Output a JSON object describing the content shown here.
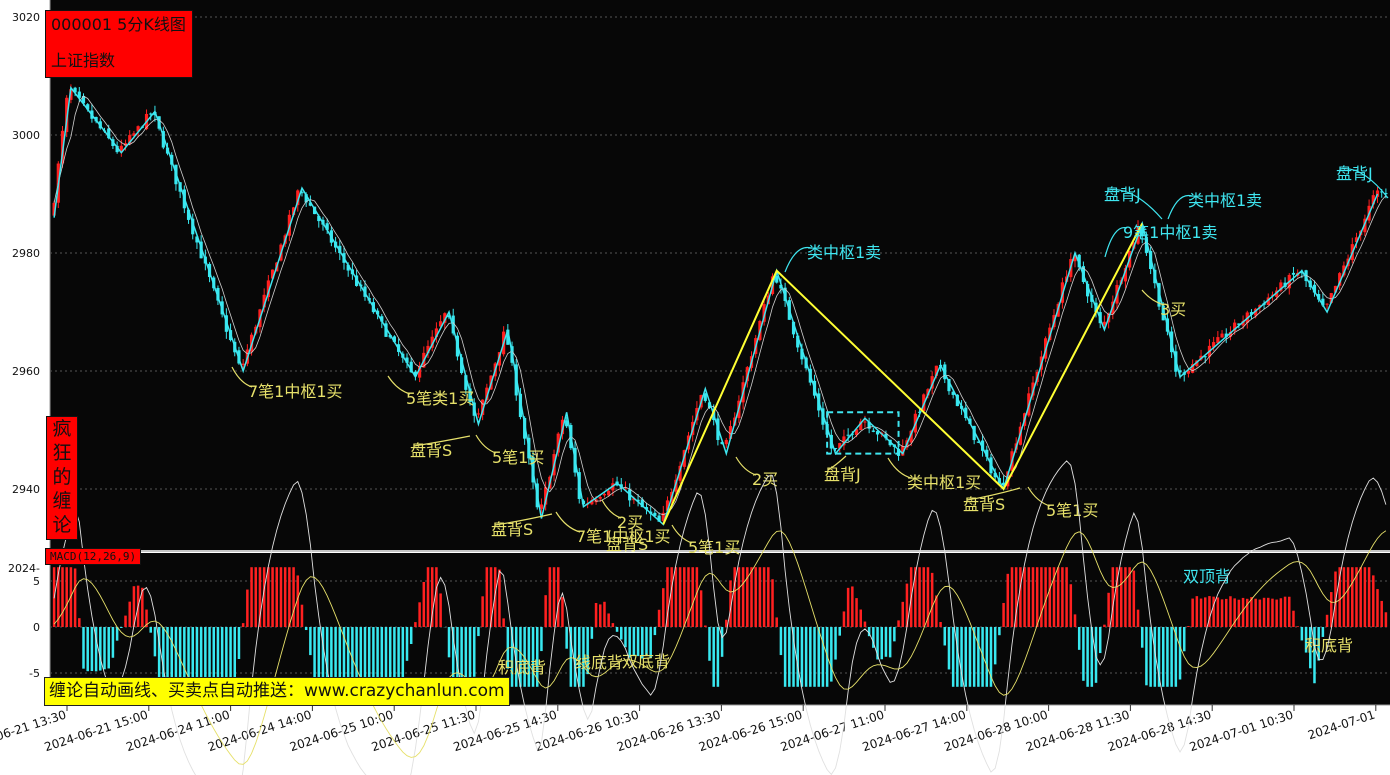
{
  "header": {
    "code_title": "000001 5分K线图",
    "index_name": "上证指数"
  },
  "side_banner": [
    "疯",
    "狂",
    "的",
    "缠",
    "论"
  ],
  "macd_label": "MACD(12,26,9)",
  "promo": "缠论自动画线、买卖点自动推送：www.crazychanlun.com",
  "colors": {
    "background": "#070707",
    "up": "#ff2020",
    "down": "#38e8f0",
    "bi_line": "#3fe6f0",
    "segment_line": "#ffff33",
    "label_yellow": "#e6e06a",
    "label_cyan": "#3fe6f0",
    "grid": "#555555",
    "title_red": "#ff0000",
    "promo_yellow": "#ffff00"
  },
  "chart_data": [
    {
      "type": "candlestick",
      "title": "000001 5分K线图",
      "subtitle": "上证指数",
      "y_ticks": [
        3020,
        3000,
        2980,
        2960,
        2940
      ],
      "x_ticks": [
        "2024-06-21 13:30",
        "2024-06-21 15:00",
        "2024-06-24 11:00",
        "2024-06-24 14:00",
        "2024-06-25 10:00",
        "2024-06-25 11:30",
        "2024-06-25 14:30",
        "2024-06-26 10:30",
        "2024-06-26 13:30",
        "2024-06-26 15:00",
        "2024-06-27 11:00",
        "2024-06-27 14:00",
        "2024-06-28 10:00",
        "2024-06-28 11:30",
        "2024-06-28 14:30",
        "2024-07-01 10:30",
        "2024-07-01"
      ],
      "ylim": [
        2930,
        3022
      ],
      "grid": true,
      "bi_pivots": [
        {
          "i": 0,
          "y": 2986
        },
        {
          "i": 4,
          "y": 3008
        },
        {
          "i": 16,
          "y": 2997
        },
        {
          "i": 24,
          "y": 3004
        },
        {
          "i": 45,
          "y": 2960
        },
        {
          "i": 59,
          "y": 2991
        },
        {
          "i": 86,
          "y": 2959
        },
        {
          "i": 94,
          "y": 2970
        },
        {
          "i": 101,
          "y": 2951
        },
        {
          "i": 108,
          "y": 2967
        },
        {
          "i": 116,
          "y": 2935
        },
        {
          "i": 122,
          "y": 2953
        },
        {
          "i": 126,
          "y": 2937
        },
        {
          "i": 134,
          "y": 2941
        },
        {
          "i": 145,
          "y": 2934
        },
        {
          "i": 155,
          "y": 2957
        },
        {
          "i": 160,
          "y": 2946
        },
        {
          "i": 172,
          "y": 2977
        },
        {
          "i": 186,
          "y": 2946
        },
        {
          "i": 193,
          "y": 2952
        },
        {
          "i": 202,
          "y": 2946
        },
        {
          "i": 211,
          "y": 2961
        },
        {
          "i": 226,
          "y": 2940
        },
        {
          "i": 243,
          "y": 2980
        },
        {
          "i": 250,
          "y": 2967
        },
        {
          "i": 259,
          "y": 2985
        },
        {
          "i": 268,
          "y": 2959
        },
        {
          "i": 297,
          "y": 2977
        },
        {
          "i": 303,
          "y": 2970
        },
        {
          "i": 315,
          "y": 2990
        }
      ],
      "segments": [
        {
          "i": 145,
          "y": 2934
        },
        {
          "i": 172,
          "y": 2977
        },
        {
          "i": 226,
          "y": 2940
        },
        {
          "i": 259,
          "y": 2985
        }
      ],
      "pivot_box": {
        "i0": 184,
        "i1": 201,
        "y0": 2946,
        "y1": 2953
      },
      "annotations": [
        {
          "text": "7笔1中枢1买",
          "color": "yellow"
        },
        {
          "text": "5笔类1买",
          "color": "yellow"
        },
        {
          "text": "盘背S",
          "color": "yellow"
        },
        {
          "text": "5笔1买",
          "color": "yellow"
        },
        {
          "text": "盘背S",
          "color": "yellow"
        },
        {
          "text": "7笔1中枢1买",
          "color": "yellow"
        },
        {
          "text": "2买",
          "color": "yellow"
        },
        {
          "text": "盘背S",
          "color": "yellow"
        },
        {
          "text": "5笔1买",
          "color": "yellow"
        },
        {
          "text": "2买",
          "color": "yellow"
        },
        {
          "text": "类中枢1卖",
          "color": "cyan"
        },
        {
          "text": "盘背J",
          "color": "yellow"
        },
        {
          "text": "类中枢1买",
          "color": "yellow"
        },
        {
          "text": "盘背S",
          "color": "yellow"
        },
        {
          "text": "5笔1买",
          "color": "yellow"
        },
        {
          "text": "盘背J",
          "color": "cyan"
        },
        {
          "text": "9笔1中枢1卖",
          "color": "cyan"
        },
        {
          "text": "类中枢1卖",
          "color": "cyan"
        },
        {
          "text": "3买",
          "color": "yellow"
        },
        {
          "text": "盘背J",
          "color": "cyan"
        }
      ]
    },
    {
      "type": "bar",
      "title": "MACD(12,26,9)",
      "y_ticks": [
        5,
        0,
        -5
      ],
      "ylim": [
        -7,
        7
      ],
      "annotations": [
        {
          "text": "积底背",
          "color": "yellow"
        },
        {
          "text": "线底背",
          "color": "yellow"
        },
        {
          "text": "双底背",
          "color": "yellow"
        },
        {
          "text": "双顶背",
          "color": "cyan"
        },
        {
          "text": "积底背",
          "color": "yellow"
        }
      ]
    }
  ]
}
